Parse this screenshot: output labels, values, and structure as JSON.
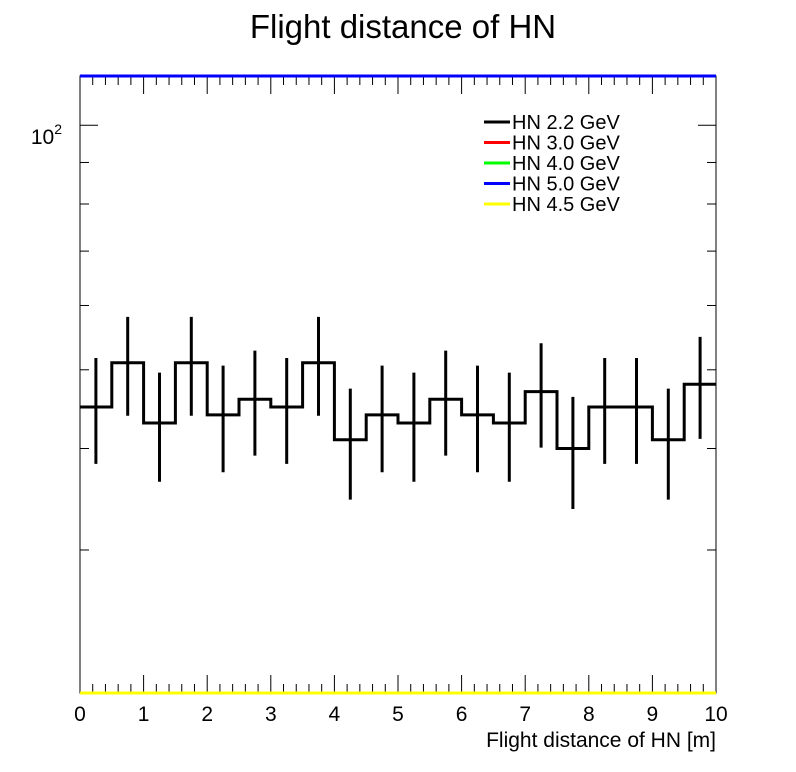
{
  "chart_data": {
    "type": "histogram",
    "title": "Flight distance of HN",
    "xlabel": "Flight distance of HN [m]",
    "ylabel": "",
    "xlim": [
      0,
      10
    ],
    "ylim": [
      20,
      115
    ],
    "y_log_scale": true,
    "x_ticks": [
      "0",
      "1",
      "2",
      "3",
      "4",
      "5",
      "6",
      "7",
      "8",
      "9",
      "10"
    ],
    "y_tick_label": {
      "base": "10",
      "exponent": "2",
      "value": 100
    },
    "grid": false,
    "legend_position": "top-right",
    "bin_edges": [
      0,
      0.5,
      1,
      1.5,
      2,
      2.5,
      3,
      3.5,
      4,
      4.5,
      5,
      5.5,
      6,
      6.5,
      7,
      7.5,
      8,
      8.5,
      9,
      9.5,
      10
    ],
    "series": [
      {
        "name": "HN 2.2 GeV",
        "color": "#000000",
        "values": [
          45,
          51,
          43,
          51,
          44,
          46,
          45,
          51,
          41,
          44,
          43,
          46,
          44,
          43,
          47,
          40,
          45,
          45,
          41,
          48
        ],
        "errors": [
          6.7,
          7.1,
          6.6,
          7.1,
          6.6,
          6.8,
          6.7,
          7.1,
          6.4,
          6.6,
          6.6,
          6.8,
          6.6,
          6.6,
          6.9,
          6.3,
          6.7,
          6.7,
          6.4,
          6.9
        ]
      },
      {
        "name": "HN 3.0 GeV",
        "color": "#ff0000",
        "values": []
      },
      {
        "name": "HN 4.0 GeV",
        "color": "#00ff00",
        "values": []
      },
      {
        "name": "HN 5.0 GeV",
        "color": "#0000ff",
        "values": [
          115,
          115,
          115,
          115,
          115,
          115,
          115,
          115,
          115,
          115,
          115,
          115,
          115,
          115,
          115,
          115,
          115,
          115,
          115,
          115
        ]
      },
      {
        "name": "HN 4.5 GeV",
        "color": "#ffff00",
        "values": [
          20,
          20,
          20,
          20,
          20,
          20,
          20,
          20,
          20,
          20,
          20,
          20,
          20,
          20,
          20,
          20,
          20,
          20,
          20,
          20
        ]
      }
    ]
  }
}
